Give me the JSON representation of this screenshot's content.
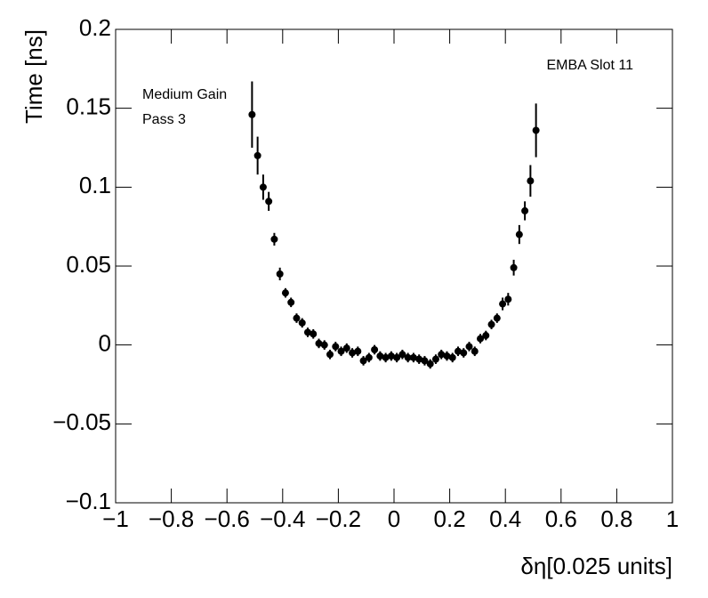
{
  "chart_data": {
    "type": "scatter",
    "x_label": "δη[0.025 units]",
    "y_label": "Time [ns]",
    "annotations": [
      "EMBA Slot 11",
      "Medium Gain",
      "Pass 3"
    ],
    "color": "#000000",
    "xlim": [
      -1,
      1
    ],
    "ylim": [
      -0.1,
      0.2
    ],
    "xticks": [
      {
        "value": -1,
        "label": "−1"
      },
      {
        "value": -0.8,
        "label": "−0.8"
      },
      {
        "value": -0.6,
        "label": "−0.6"
      },
      {
        "value": -0.4,
        "label": "−0.4"
      },
      {
        "value": -0.2,
        "label": "−0.2"
      },
      0,
      0.2,
      0.4,
      0.6,
      0.8,
      1
    ],
    "yticks": [
      {
        "value": -0.1,
        "label": "−0.1"
      },
      {
        "value": -0.05,
        "label": "−0.05"
      },
      0,
      0.05,
      0.1,
      0.15,
      0.2
    ],
    "x": [
      -0.51,
      -0.49,
      -0.47,
      -0.45,
      -0.43,
      -0.41,
      -0.39,
      -0.37,
      -0.35,
      -0.33,
      -0.31,
      -0.29,
      -0.27,
      -0.25,
      -0.23,
      -0.21,
      -0.19,
      -0.17,
      -0.15,
      -0.13,
      -0.11,
      -0.09,
      -0.07,
      -0.05,
      -0.03,
      -0.01,
      0.01,
      0.03,
      0.05,
      0.07,
      0.09,
      0.11,
      0.13,
      0.15,
      0.17,
      0.19,
      0.21,
      0.23,
      0.25,
      0.27,
      0.29,
      0.31,
      0.33,
      0.35,
      0.37,
      0.39,
      0.41,
      0.43,
      0.45,
      0.47,
      0.49,
      0.51
    ],
    "values": [
      0.146,
      0.12,
      0.1,
      0.091,
      0.067,
      0.045,
      0.033,
      0.027,
      0.017,
      0.014,
      0.008,
      0.007,
      0.001,
      0.0,
      -0.006,
      -0.001,
      -0.004,
      -0.002,
      -0.005,
      -0.004,
      -0.01,
      -0.008,
      -0.003,
      -0.007,
      -0.008,
      -0.007,
      -0.008,
      -0.006,
      -0.008,
      -0.008,
      -0.009,
      -0.01,
      -0.012,
      -0.009,
      -0.006,
      -0.007,
      -0.008,
      -0.004,
      -0.005,
      -0.001,
      -0.004,
      0.004,
      0.006,
      0.013,
      0.017,
      0.026,
      0.029,
      0.049,
      0.07,
      0.085,
      0.104,
      0.136
    ],
    "errors": [
      0.021,
      0.012,
      0.008,
      0.006,
      0.004,
      0.004,
      0.003,
      0.003,
      0.003,
      0.003,
      0.003,
      0.003,
      0.003,
      0.003,
      0.003,
      0.003,
      0.003,
      0.003,
      0.003,
      0.003,
      0.003,
      0.003,
      0.003,
      0.003,
      0.003,
      0.003,
      0.003,
      0.003,
      0.003,
      0.003,
      0.003,
      0.003,
      0.003,
      0.003,
      0.003,
      0.003,
      0.003,
      0.003,
      0.003,
      0.003,
      0.003,
      0.003,
      0.003,
      0.003,
      0.003,
      0.004,
      0.004,
      0.005,
      0.006,
      0.006,
      0.01,
      0.017
    ]
  }
}
